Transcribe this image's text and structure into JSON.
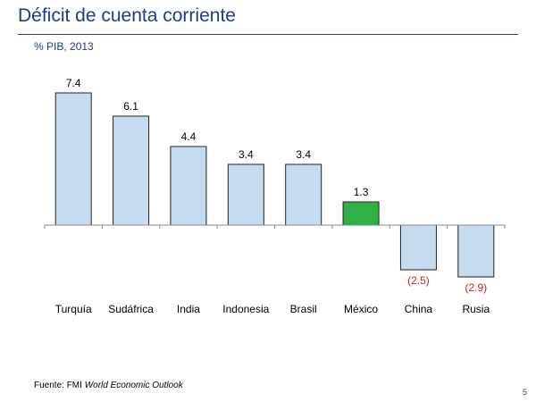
{
  "slide": {
    "title": "Déficit de cuenta corriente",
    "source_prefix": "Fuente: FMI ",
    "source_italic": "World Economic Outlook",
    "page_number": "5"
  },
  "chart_data": {
    "type": "bar",
    "title": "",
    "subtitle": "% PIB, 2013",
    "categories": [
      "Turquía",
      "Sudáfrica",
      "India",
      "Indonesia",
      "Brasil",
      "México",
      "China",
      "Rusia"
    ],
    "values": [
      7.4,
      6.1,
      4.4,
      3.4,
      3.4,
      1.3,
      -2.5,
      -2.9
    ],
    "value_labels": [
      "7.4",
      "6.1",
      "4.4",
      "3.4",
      "3.4",
      "1.3",
      "(2.5)",
      "(2.9)"
    ],
    "xlabel": "",
    "ylabel": "",
    "ylim": [
      -3.5,
      8
    ],
    "grid": false,
    "colors": {
      "bar_default": "#c5dcf0",
      "bar_highlight": "#2eb044",
      "bar_stroke": "#222222",
      "negative_label": "#c0281e",
      "positive_label": "#000000"
    },
    "highlight_category": "México"
  }
}
